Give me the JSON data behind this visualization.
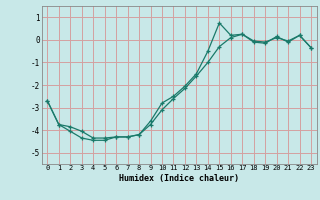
{
  "xlabel": "Humidex (Indice chaleur)",
  "background_color": "#c8e8e8",
  "grid_color": "#d4a0a0",
  "line_color": "#1a7a6a",
  "xlim": [
    -0.5,
    23.5
  ],
  "ylim": [
    -5.5,
    1.5
  ],
  "yticks": [
    -5,
    -4,
    -3,
    -2,
    -1,
    0,
    1
  ],
  "xticks": [
    0,
    1,
    2,
    3,
    4,
    5,
    6,
    7,
    8,
    9,
    10,
    11,
    12,
    13,
    14,
    15,
    16,
    17,
    18,
    19,
    20,
    21,
    22,
    23
  ],
  "line1_x": [
    0,
    1,
    2,
    3,
    4,
    5,
    6,
    7,
    8,
    9,
    10,
    11,
    12,
    13,
    14,
    15,
    16,
    17,
    18,
    19,
    20,
    21,
    22,
    23
  ],
  "line1_y": [
    -2.7,
    -3.75,
    -4.05,
    -4.35,
    -4.45,
    -4.45,
    -4.3,
    -4.3,
    -4.2,
    -3.6,
    -2.8,
    -2.5,
    -2.05,
    -1.5,
    -0.5,
    0.75,
    0.2,
    0.25,
    -0.1,
    -0.15,
    0.15,
    -0.1,
    0.2,
    -0.35
  ],
  "line2_x": [
    0,
    1,
    2,
    3,
    4,
    5,
    6,
    7,
    8,
    9,
    10,
    11,
    12,
    13,
    14,
    15,
    16,
    17,
    18,
    19,
    20,
    21,
    22,
    23
  ],
  "line2_y": [
    -2.7,
    -3.75,
    -3.85,
    -4.05,
    -4.35,
    -4.35,
    -4.3,
    -4.3,
    -4.2,
    -3.75,
    -3.1,
    -2.6,
    -2.15,
    -1.6,
    -1.0,
    -0.3,
    0.1,
    0.25,
    -0.05,
    -0.1,
    0.1,
    -0.05,
    0.2,
    -0.35
  ]
}
